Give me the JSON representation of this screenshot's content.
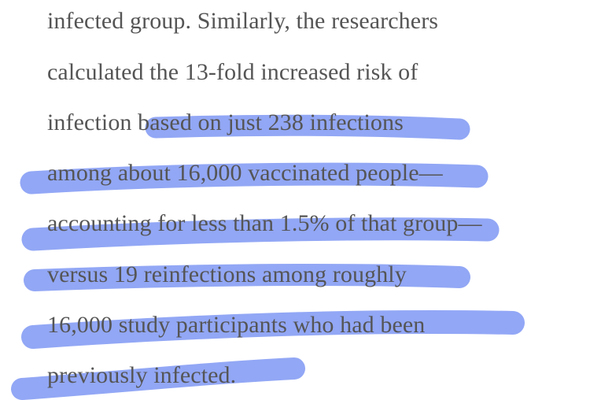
{
  "article": {
    "lines": [
      "infected group. Similarly, the researchers",
      "calculated the 13-fold increased risk of",
      "infection based on just 238 infections",
      "among about 16,000 vaccinated people—",
      "accounting for less than 1.5% of that group—",
      "versus 19 reinfections among roughly",
      "16,000 study participants who had been",
      "previously infected."
    ]
  },
  "highlight": {
    "color": "#7f98f4"
  }
}
